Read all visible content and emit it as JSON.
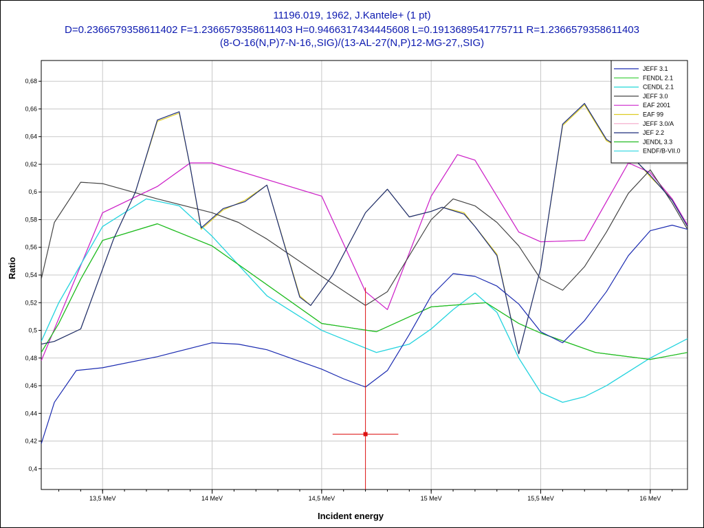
{
  "title_lines": [
    "11196.019, 1962, J.Kantele+ (1 pt)",
    "D=0.2366579358611402 F=1.2366579358611403 H=0.9466317434445608 L=0.1913689541775711 R=1.2366579358611403",
    "(8-O-16(N,P)7-N-16,,SIG)/(13-AL-27(N,P)12-MG-27,,SIG)"
  ],
  "chart_data": {
    "type": "line",
    "xlabel": "Incident energy",
    "ylabel": "Ratio",
    "xlim": [
      13.22,
      16.17
    ],
    "ylim": [
      0.385,
      0.695
    ],
    "x_ticks": [
      {
        "value": 13.5,
        "label": "13,5 MeV"
      },
      {
        "value": 14.0,
        "label": "14 MeV"
      },
      {
        "value": 14.5,
        "label": "14,5 MeV"
      },
      {
        "value": 15.0,
        "label": "15 MeV"
      },
      {
        "value": 15.5,
        "label": "15,5 MeV"
      },
      {
        "value": 16.0,
        "label": "16 MeV"
      }
    ],
    "y_ticks": [
      {
        "value": 0.4,
        "label": "0,4"
      },
      {
        "value": 0.42,
        "label": "0,42"
      },
      {
        "value": 0.44,
        "label": "0,44"
      },
      {
        "value": 0.46,
        "label": "0,46"
      },
      {
        "value": 0.48,
        "label": "0,48"
      },
      {
        "value": 0.5,
        "label": "0,5"
      },
      {
        "value": 0.52,
        "label": "0,52"
      },
      {
        "value": 0.54,
        "label": "0,54"
      },
      {
        "value": 0.56,
        "label": "0,56"
      },
      {
        "value": 0.58,
        "label": "0,58"
      },
      {
        "value": 0.6,
        "label": "0,6"
      },
      {
        "value": 0.62,
        "label": "0,62"
      },
      {
        "value": 0.64,
        "label": "0,64"
      },
      {
        "value": 0.66,
        "label": "0,66"
      },
      {
        "value": 0.68,
        "label": "0,68"
      }
    ],
    "grid": true,
    "legend_position": "top-right",
    "series": [
      {
        "name": "JEFF 3.1",
        "color": "#1a2ab0",
        "x": [
          13.22,
          13.28,
          13.38,
          13.5,
          13.75,
          14.0,
          14.12,
          14.25,
          14.5,
          14.6,
          14.7,
          14.8,
          14.9,
          15.0,
          15.1,
          15.2,
          15.3,
          15.4,
          15.5,
          15.6,
          15.7,
          15.8,
          15.9,
          16.0,
          16.1,
          16.17
        ],
        "y": [
          0.418,
          0.448,
          0.471,
          0.473,
          0.481,
          0.491,
          0.49,
          0.486,
          0.472,
          0.465,
          0.459,
          0.471,
          0.497,
          0.525,
          0.541,
          0.539,
          0.532,
          0.519,
          0.499,
          0.491,
          0.507,
          0.528,
          0.554,
          0.572,
          0.576,
          0.573
        ]
      },
      {
        "name": "FENDL 2.1",
        "color": "#33cc33",
        "x": [
          13.22,
          13.3,
          13.4,
          13.5,
          13.75,
          14.0,
          14.25,
          14.5,
          14.75,
          15.0,
          15.25,
          15.4,
          15.5,
          15.75,
          16.0,
          16.17
        ],
        "y": [
          0.484,
          0.505,
          0.537,
          0.565,
          0.577,
          0.561,
          0.533,
          0.505,
          0.499,
          0.517,
          0.52,
          0.505,
          0.498,
          0.484,
          0.479,
          0.484
        ]
      },
      {
        "name": "CENDL 2.1",
        "color": "#22d8d8",
        "x": [
          13.22,
          13.3,
          13.5,
          13.7,
          13.85,
          14.0,
          14.25,
          14.5,
          14.75,
          14.9,
          15.0,
          15.1,
          15.2,
          15.3,
          15.4,
          15.5,
          15.6,
          15.7,
          15.8,
          16.0,
          16.17
        ],
        "y": [
          0.492,
          0.52,
          0.575,
          0.595,
          0.59,
          0.568,
          0.525,
          0.5,
          0.484,
          0.49,
          0.501,
          0.515,
          0.527,
          0.513,
          0.48,
          0.455,
          0.448,
          0.452,
          0.46,
          0.48,
          0.494
        ]
      },
      {
        "name": "JEFF 3.0",
        "color": "#444444",
        "x": [
          13.22,
          13.28,
          13.4,
          13.5,
          13.75,
          14.0,
          14.12,
          14.25,
          14.5,
          14.7,
          14.8,
          15.0,
          15.1,
          15.2,
          15.3,
          15.4,
          15.5,
          15.6,
          15.7,
          15.8,
          15.9,
          16.0,
          16.1,
          16.17
        ],
        "y": [
          0.537,
          0.578,
          0.607,
          0.606,
          0.595,
          0.585,
          0.578,
          0.566,
          0.539,
          0.518,
          0.528,
          0.58,
          0.595,
          0.59,
          0.578,
          0.561,
          0.537,
          0.529,
          0.546,
          0.571,
          0.599,
          0.616,
          0.592,
          0.573
        ]
      },
      {
        "name": "EAF 2001",
        "color": "#cc22cc",
        "x": [
          13.22,
          13.5,
          13.75,
          13.9,
          14.0,
          14.5,
          14.7,
          14.8,
          15.0,
          15.12,
          15.2,
          15.4,
          15.5,
          15.7,
          15.9,
          16.0,
          16.1,
          16.17
        ],
        "y": [
          0.478,
          0.585,
          0.604,
          0.621,
          0.621,
          0.597,
          0.528,
          0.515,
          0.597,
          0.627,
          0.623,
          0.571,
          0.564,
          0.565,
          0.621,
          0.614,
          0.595,
          0.576
        ]
      },
      {
        "name": "EAF 99",
        "color": "#ddcc22",
        "x": [
          13.22,
          13.28,
          13.4,
          13.55,
          13.65,
          13.75,
          13.85,
          13.9,
          13.95,
          14.05,
          14.15,
          14.25,
          14.4,
          14.45,
          14.55,
          14.7,
          14.8,
          14.9,
          15.0,
          15.05,
          15.15,
          15.2,
          15.3,
          15.4,
          15.5,
          15.6,
          15.7,
          15.8,
          15.9,
          16.0,
          16.1,
          16.17
        ],
        "y": [
          0.49,
          0.492,
          0.501,
          0.566,
          0.6,
          0.651,
          0.657,
          0.618,
          0.573,
          0.587,
          0.594,
          0.605,
          0.525,
          0.518,
          0.54,
          0.585,
          0.602,
          0.582,
          0.586,
          0.589,
          0.585,
          0.575,
          0.555,
          0.483,
          0.545,
          0.648,
          0.663,
          0.637,
          0.629,
          0.611,
          0.595,
          0.575
        ]
      },
      {
        "name": "JEFF 3.0/A",
        "color": "#f4a6c8",
        "x": [
          13.22,
          13.5,
          13.75,
          13.9,
          14.0,
          14.5,
          14.7,
          14.8,
          15.0,
          15.12,
          15.2,
          15.4,
          15.5,
          15.7,
          15.9,
          16.0,
          16.1,
          16.17
        ],
        "y": [
          0.478,
          0.585,
          0.604,
          0.621,
          0.621,
          0.597,
          0.528,
          0.515,
          0.597,
          0.627,
          0.623,
          0.571,
          0.564,
          0.565,
          0.621,
          0.614,
          0.595,
          0.576
        ]
      },
      {
        "name": "JEF 2.2",
        "color": "#1a2a7a",
        "x": [
          13.22,
          13.28,
          13.4,
          13.55,
          13.65,
          13.75,
          13.85,
          13.9,
          13.95,
          14.05,
          14.15,
          14.25,
          14.4,
          14.45,
          14.55,
          14.7,
          14.8,
          14.9,
          15.0,
          15.05,
          15.15,
          15.2,
          15.3,
          15.4,
          15.5,
          15.6,
          15.7,
          15.8,
          15.9,
          16.0,
          16.1,
          16.17
        ],
        "y": [
          0.49,
          0.492,
          0.501,
          0.566,
          0.6,
          0.652,
          0.658,
          0.618,
          0.574,
          0.588,
          0.593,
          0.605,
          0.524,
          0.518,
          0.54,
          0.585,
          0.602,
          0.582,
          0.586,
          0.589,
          0.584,
          0.575,
          0.554,
          0.483,
          0.545,
          0.649,
          0.664,
          0.638,
          0.628,
          0.612,
          0.594,
          0.575
        ]
      },
      {
        "name": "JENDL 3.3",
        "color": "#22bb22",
        "x": [
          13.22,
          13.3,
          13.4,
          13.5,
          13.75,
          14.0,
          14.25,
          14.5,
          14.75,
          15.0,
          15.25,
          15.4,
          15.5,
          15.75,
          16.0,
          16.17
        ],
        "y": [
          0.484,
          0.505,
          0.537,
          0.565,
          0.577,
          0.561,
          0.533,
          0.505,
          0.499,
          0.517,
          0.52,
          0.505,
          0.498,
          0.484,
          0.479,
          0.484
        ]
      },
      {
        "name": "ENDF/B-VII.0",
        "color": "#2ad4e0",
        "x": [
          13.22,
          13.3,
          13.5,
          13.7,
          13.85,
          14.0,
          14.25,
          14.5,
          14.75,
          14.9,
          15.0,
          15.1,
          15.2,
          15.3,
          15.4,
          15.5,
          15.6,
          15.7,
          15.8,
          16.0,
          16.17
        ],
        "y": [
          0.492,
          0.52,
          0.575,
          0.595,
          0.59,
          0.568,
          0.525,
          0.5,
          0.484,
          0.49,
          0.501,
          0.515,
          0.527,
          0.513,
          0.48,
          0.455,
          0.448,
          0.452,
          0.46,
          0.48,
          0.494
        ]
      }
    ],
    "experimental_point": {
      "x": 14.7,
      "y": 0.425,
      "x_err_low": 14.55,
      "x_err_high": 14.85,
      "y_err_low": 0.385,
      "y_err_high": 0.531,
      "color": "#dd1111"
    }
  }
}
